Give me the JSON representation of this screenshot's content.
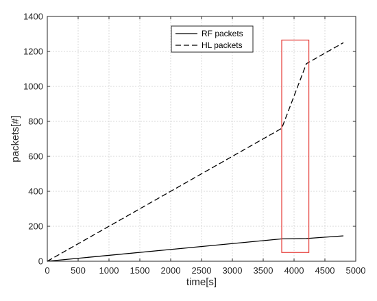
{
  "chart_data": {
    "type": "line",
    "title": "",
    "xlabel": "time[s]",
    "ylabel": "packets[#]",
    "xlim": [
      0,
      5000
    ],
    "ylim": [
      0,
      1400
    ],
    "xticks": [
      0,
      500,
      1000,
      1500,
      2000,
      2500,
      3000,
      3500,
      4000,
      4500,
      5000
    ],
    "yticks": [
      0,
      200,
      400,
      600,
      800,
      1000,
      1200,
      1400
    ],
    "grid": true,
    "legend_position": "top-center",
    "series": [
      {
        "name": "RF packets",
        "style": "solid",
        "color": "#000000",
        "x": [
          0,
          3800,
          4200,
          4800
        ],
        "y": [
          0,
          128,
          130,
          145
        ]
      },
      {
        "name": "HL packets",
        "style": "dashed",
        "color": "#000000",
        "x": [
          0,
          3800,
          4200,
          4800
        ],
        "y": [
          0,
          760,
          1130,
          1250
        ]
      }
    ],
    "annotations": [
      {
        "type": "rectangle",
        "color": "#e53935",
        "x": [
          3800,
          4240
        ],
        "y": [
          50,
          1265
        ]
      }
    ]
  }
}
